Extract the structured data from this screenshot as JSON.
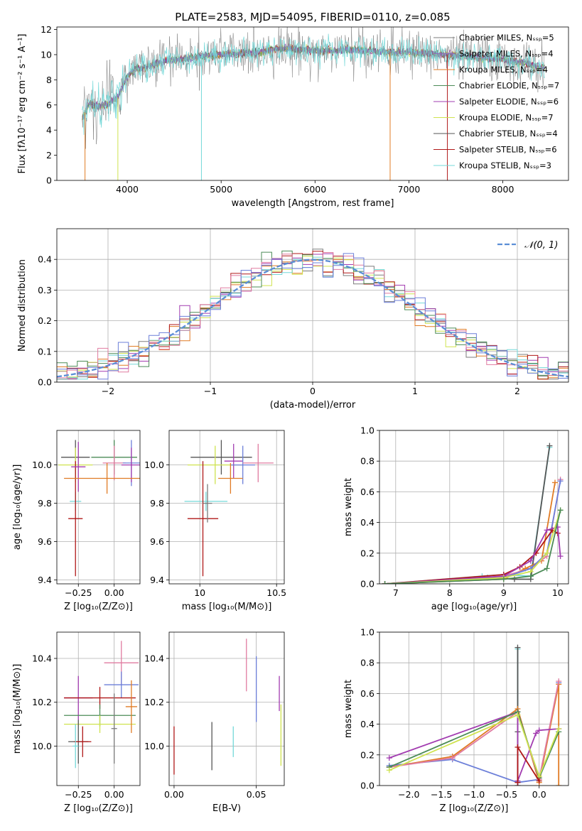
{
  "chart_data": [
    {
      "id": "spectrum",
      "type": "line",
      "title": "PLATE=2583, MJD=54095, FIBERID=0110, z=0.085",
      "xlabel": "wavelength [Angstrom, rest frame]",
      "ylabel": "Flux [fλ10⁻¹⁷ erg cm⁻² s⁻¹ A⁻¹]",
      "xlim": [
        3250,
        8700
      ],
      "ylim": [
        0,
        12.2
      ],
      "xticks": [
        4000,
        5000,
        6000,
        7000,
        8000
      ],
      "yticks": [
        0,
        2,
        4,
        6,
        8,
        10,
        12
      ],
      "grid": false,
      "legend_position": "top-right",
      "series": [
        {
          "name": "Chabrier MILES, Nₛₛₚ=5",
          "color": "#7b7b7b"
        },
        {
          "name": "Salpeter MILES, Nₛₛₚ=4",
          "color": "#8d6fb5"
        },
        {
          "name": "Kroupa MILES, Nₛₛₚ=4",
          "color": "#e07b24"
        },
        {
          "name": "Chabrier ELODIE, Nₛₛₚ=7",
          "color": "#4b8b57"
        },
        {
          "name": "Salpeter ELODIE, Nₛₛₚ=6",
          "color": "#a23cb0"
        },
        {
          "name": "Kroupa ELODIE, Nₛₛₚ=7",
          "color": "#cfe34f"
        },
        {
          "name": "Chabrier STELIB, Nₛₛₚ=4",
          "color": "#555555"
        },
        {
          "name": "Salpeter STELIB, Nₛₛₚ=6",
          "color": "#b01818"
        },
        {
          "name": "Kroupa STELIB, Nₛₛₚ=3",
          "color": "#74d8d8"
        }
      ],
      "profile_x": [
        3520,
        3600,
        3700,
        3800,
        3900,
        4000,
        4100,
        4200,
        4400,
        4600,
        4800,
        5000,
        5200,
        5400,
        5600,
        5800,
        6000,
        6200,
        6400,
        6600,
        6800,
        7000,
        7200,
        7400,
        7600,
        7800,
        8000,
        8200,
        8450
      ],
      "profile_y": [
        4.9,
        6.2,
        5.8,
        6.1,
        6.6,
        8.3,
        8.9,
        9.0,
        9.5,
        9.7,
        9.9,
        10.0,
        10.1,
        10.2,
        10.5,
        10.4,
        10.3,
        10.3,
        10.4,
        10.3,
        10.2,
        10.2,
        10.1,
        10.0,
        9.9,
        9.7,
        9.6,
        9.4,
        8.9
      ]
    },
    {
      "id": "residuals",
      "type": "histogram",
      "xlabel": "(data-model)/error",
      "ylabel": "Normed distribution",
      "xlim": [
        -2.5,
        2.5
      ],
      "ylim": [
        0,
        0.5
      ],
      "xticks": [
        -2,
        -1,
        0,
        1,
        2
      ],
      "yticks": [
        0.0,
        0.1,
        0.2,
        0.3,
        0.4
      ],
      "grid": true,
      "legend_position": "top-right",
      "legend": "𝒩(0, 1)",
      "reference_curve": {
        "type": "normal",
        "mean": 0,
        "sigma": 1,
        "color": "#5b8fd6"
      },
      "bin_width": 0.1,
      "series_colors": [
        "#7b7b7b",
        "#e07b24",
        "#a23cb0",
        "#cfe34f",
        "#b01818",
        "#74d8d8",
        "#4b8b57",
        "#e07ba0",
        "#6c7fd9"
      ]
    },
    {
      "id": "age-vs-Z",
      "type": "errorbar",
      "xlabel": "Z [log₁₀(Z/Z⊙)]",
      "ylabel": "age  [log₁₀(age/yr)]",
      "xlim": [
        -0.4,
        0.18
      ],
      "ylim": [
        9.38,
        10.18
      ],
      "xticks": [
        -0.25,
        0.0
      ],
      "xticklabels": [
        "−0.25",
        "0.00"
      ],
      "yticks": [
        9.4,
        9.6,
        9.8,
        10.0
      ],
      "grid": true,
      "points": [
        {
          "x": -0.27,
          "y": 10.04,
          "xerr": 0.1,
          "yerr": 0.09,
          "color": "#555555"
        },
        {
          "x": -0.27,
          "y": 10.0,
          "xerr": 0.12,
          "yerr": 0.09,
          "color": "#cfe34f"
        },
        {
          "x": -0.27,
          "y": 9.81,
          "xerr": 0.04,
          "yerr": 0.05,
          "color": "#74d8d8"
        },
        {
          "x": -0.27,
          "y": 9.72,
          "xerr": 0.05,
          "yerr": 0.3,
          "color": "#b01818"
        },
        {
          "x": -0.25,
          "y": 9.99,
          "xerr": 0.05,
          "yerr": 0.13,
          "color": "#a23cb0"
        },
        {
          "x": 0.0,
          "y": 10.04,
          "xerr": 0.16,
          "yerr": 0.09,
          "color": "#4b8b57"
        },
        {
          "x": 0.0,
          "y": 10.01,
          "xerr": 0.08,
          "yerr": 0.09,
          "color": "#e07ba0"
        },
        {
          "x": 0.12,
          "y": 10.01,
          "xerr": 0.06,
          "yerr": 0.12,
          "color": "#6c7fd9"
        },
        {
          "x": 0.12,
          "y": 10.0,
          "xerr": 0.07,
          "yerr": 0.09,
          "color": "#a23cb0"
        },
        {
          "x": -0.05,
          "y": 9.93,
          "xerr": 0.3,
          "yerr": 0.08,
          "color": "#e07b24"
        }
      ]
    },
    {
      "id": "age-vs-mass",
      "type": "errorbar",
      "xlabel": "mass [log₁₀(M/M⊙)]",
      "ylabel": "",
      "xlim": [
        9.8,
        10.55
      ],
      "ylim": [
        9.38,
        10.18
      ],
      "xticks": [
        10.0,
        10.5
      ],
      "yticks": [
        9.4,
        9.6,
        9.8,
        10.0
      ],
      "grid": true,
      "points": [
        {
          "x": 10.14,
          "y": 10.04,
          "xerr": 0.2,
          "yerr": 0.09,
          "color": "#555555"
        },
        {
          "x": 10.1,
          "y": 10.0,
          "xerr": 0.18,
          "yerr": 0.1,
          "color": "#cfe34f"
        },
        {
          "x": 10.04,
          "y": 9.81,
          "xerr": 0.14,
          "yerr": 0.05,
          "color": "#74d8d8"
        },
        {
          "x": 10.02,
          "y": 9.72,
          "xerr": 0.1,
          "yerr": 0.3,
          "color": "#b01818"
        },
        {
          "x": 10.22,
          "y": 10.02,
          "xerr": 0.06,
          "yerr": 0.09,
          "color": "#a23cb0"
        },
        {
          "x": 10.28,
          "y": 10.0,
          "xerr": 0.08,
          "yerr": 0.1,
          "color": "#6c7fd9"
        },
        {
          "x": 10.38,
          "y": 10.01,
          "xerr": 0.1,
          "yerr": 0.1,
          "color": "#e07ba0"
        },
        {
          "x": 10.2,
          "y": 9.93,
          "xerr": 0.08,
          "yerr": 0.08,
          "color": "#e07b24"
        },
        {
          "x": 10.05,
          "y": 9.8,
          "xerr": 0.03,
          "yerr": 0.1,
          "color": "#7b7b7b"
        }
      ]
    },
    {
      "id": "weight-vs-age",
      "type": "line",
      "xlabel": "age  [log₁₀(age/yr)]",
      "ylabel": "mass weight",
      "xlim": [
        6.7,
        10.2
      ],
      "ylim": [
        0,
        1
      ],
      "xticks": [
        7,
        8,
        9,
        10
      ],
      "yticks": [
        0.0,
        0.2,
        0.4,
        0.6,
        0.8,
        1.0
      ],
      "grid": true,
      "series": [
        {
          "color": "#74d8d8",
          "x": [
            6.8,
            8.6,
            9.0,
            9.5,
            9.85
          ],
          "y": [
            0.0,
            0.05,
            0.06,
            0.05,
            0.89
          ]
        },
        {
          "color": "#555555",
          "x": [
            6.8,
            8.7,
            9.2,
            9.5,
            9.85
          ],
          "y": [
            0.0,
            0.04,
            0.03,
            0.03,
            0.9
          ]
        },
        {
          "color": "#e07b24",
          "x": [
            6.8,
            9.0,
            9.4,
            9.7,
            9.95
          ],
          "y": [
            0.0,
            0.03,
            0.1,
            0.15,
            0.66
          ]
        },
        {
          "color": "#e07ba0",
          "x": [
            6.8,
            9.0,
            9.5,
            9.8,
            10.05
          ],
          "y": [
            0.0,
            0.05,
            0.1,
            0.18,
            0.68
          ]
        },
        {
          "color": "#6c7fd9",
          "x": [
            6.8,
            9.0,
            9.5,
            9.8,
            10.05
          ],
          "y": [
            0.0,
            0.04,
            0.1,
            0.2,
            0.67
          ]
        },
        {
          "color": "#b01818",
          "x": [
            6.8,
            9.0,
            9.3,
            9.6,
            9.9,
            10.0
          ],
          "y": [
            0.0,
            0.06,
            0.11,
            0.2,
            0.35,
            0.33
          ]
        },
        {
          "color": "#a23cb0",
          "x": [
            6.8,
            9.0,
            9.5,
            9.8,
            10.0,
            10.05
          ],
          "y": [
            0.0,
            0.05,
            0.15,
            0.35,
            0.37,
            0.18
          ]
        },
        {
          "color": "#cfe34f",
          "x": [
            6.8,
            9.0,
            9.5,
            9.8,
            10.05
          ],
          "y": [
            0.0,
            0.04,
            0.08,
            0.2,
            0.48
          ]
        },
        {
          "color": "#4b8b57",
          "x": [
            6.8,
            9.0,
            9.5,
            9.8,
            10.05
          ],
          "y": [
            0.0,
            0.03,
            0.05,
            0.1,
            0.48
          ]
        }
      ]
    },
    {
      "id": "mass-vs-Z",
      "type": "errorbar",
      "xlabel": "Z [log₁₀(Z/Z⊙)]",
      "ylabel": "mass [log₁₀(M/M⊙)]",
      "xlim": [
        -0.4,
        0.18
      ],
      "ylim": [
        9.82,
        10.52
      ],
      "xticks": [
        -0.25,
        0.0
      ],
      "xticklabels": [
        "−0.25",
        "0.00"
      ],
      "yticks": [
        10.0,
        10.2,
        10.4
      ],
      "grid": true,
      "points": [
        {
          "x": 0.05,
          "y": 10.38,
          "xerr": 0.12,
          "yerr": 0.1,
          "color": "#e07ba0"
        },
        {
          "x": 0.05,
          "y": 10.28,
          "xerr": 0.12,
          "yerr": 0.06,
          "color": "#6c7fd9"
        },
        {
          "x": -0.25,
          "y": 10.22,
          "xerr": 0.1,
          "yerr": 0.1,
          "color": "#a23cb0"
        },
        {
          "x": -0.1,
          "y": 10.22,
          "xerr": 0.25,
          "yerr": 0.05,
          "color": "#b01818"
        },
        {
          "x": -0.1,
          "y": 10.14,
          "xerr": 0.25,
          "yerr": 0.05,
          "color": "#4b8b57"
        },
        {
          "x": -0.1,
          "y": 10.1,
          "xerr": 0.25,
          "yerr": 0.04,
          "color": "#cfe34f"
        },
        {
          "x": 0.12,
          "y": 10.18,
          "xerr": 0.04,
          "yerr": 0.12,
          "color": "#e07b24"
        },
        {
          "x": -0.25,
          "y": 10.02,
          "xerr": 0.07,
          "yerr": 0.1,
          "color": "#555555"
        },
        {
          "x": -0.22,
          "y": 10.02,
          "xerr": 0.06,
          "yerr": 0.07,
          "color": "#b01818"
        },
        {
          "x": -0.27,
          "y": 10.0,
          "xerr": 0.02,
          "yerr": 0.1,
          "color": "#74d8d8"
        },
        {
          "x": 0.0,
          "y": 10.08,
          "xerr": 0.02,
          "yerr": 0.16,
          "color": "#7b7b7b"
        }
      ]
    },
    {
      "id": "mass-vs-ebv",
      "type": "errorbar",
      "xlabel": "E(B-V)",
      "ylabel": "",
      "xlim": [
        -0.003,
        0.067
      ],
      "ylim": [
        9.82,
        10.52
      ],
      "xticks": [
        0.0,
        0.05
      ],
      "xticklabels": [
        "0.00",
        "0.05"
      ],
      "yticks": [
        10.0,
        10.2,
        10.4
      ],
      "grid": true,
      "points": [
        {
          "x": 0.0,
          "y": 9.98,
          "xerr": 0,
          "yerr": 0.11,
          "color": "#b01818"
        },
        {
          "x": 0.023,
          "y": 10.0,
          "xerr": 0,
          "yerr": 0.11,
          "color": "#555555"
        },
        {
          "x": 0.036,
          "y": 10.02,
          "xerr": 0,
          "yerr": 0.07,
          "color": "#74d8d8"
        },
        {
          "x": 0.044,
          "y": 10.37,
          "xerr": 0,
          "yerr": 0.12,
          "color": "#e07ba0"
        },
        {
          "x": 0.05,
          "y": 10.26,
          "xerr": 0,
          "yerr": 0.15,
          "color": "#6c7fd9"
        },
        {
          "x": 0.064,
          "y": 10.24,
          "xerr": 0,
          "yerr": 0.08,
          "color": "#a23cb0"
        },
        {
          "x": 0.065,
          "y": 10.05,
          "xerr": 0,
          "yerr": 0.14,
          "color": "#cfe34f"
        }
      ]
    },
    {
      "id": "weight-vs-Z",
      "type": "line",
      "xlabel": "Z [log₁₀(Z/Z⊙)]",
      "ylabel": "mass weight",
      "xlim": [
        -2.45,
        0.45
      ],
      "ylim": [
        0,
        1
      ],
      "xticks": [
        -2.0,
        -1.5,
        -1.0,
        -0.5,
        0.0
      ],
      "xticklabels": [
        "−2.0",
        "−1.5",
        "−1.0",
        "−0.5",
        "0.0"
      ],
      "yticks": [
        0.0,
        0.2,
        0.4,
        0.6,
        0.8,
        1.0
      ],
      "grid": true,
      "series": [
        {
          "color": "#74d8d8",
          "x": [
            -0.33,
            -0.33,
            -0.33
          ],
          "y": [
            0.02,
            0.48,
            0.89
          ]
        },
        {
          "color": "#555555",
          "x": [
            -0.33,
            -0.33,
            -0.33
          ],
          "y": [
            0.0,
            0.35,
            0.9
          ]
        },
        {
          "color": "#6c7fd9",
          "x": [
            -2.3,
            -1.33,
            -0.33,
            0.0,
            0.3
          ],
          "y": [
            0.13,
            0.17,
            0.02,
            0.04,
            0.67
          ]
        },
        {
          "color": "#e07b24",
          "x": [
            -2.3,
            -1.33,
            -0.33,
            0.0,
            0.3,
            0.3
          ],
          "y": [
            0.12,
            0.19,
            0.5,
            0.02,
            0.66,
            0.0
          ]
        },
        {
          "color": "#e07ba0",
          "x": [
            -2.3,
            -1.33,
            -0.33,
            0.0,
            0.3
          ],
          "y": [
            0.12,
            0.18,
            0.48,
            0.04,
            0.68
          ]
        },
        {
          "color": "#a23cb0",
          "x": [
            -2.3,
            -0.33,
            -0.33,
            -0.05,
            0.0,
            0.3
          ],
          "y": [
            0.18,
            0.48,
            0.03,
            0.34,
            0.36,
            0.37
          ]
        },
        {
          "color": "#4b8b57",
          "x": [
            -2.3,
            -0.33,
            0.0,
            0.3
          ],
          "y": [
            0.12,
            0.48,
            0.05,
            0.35
          ]
        },
        {
          "color": "#cfe34f",
          "x": [
            -2.3,
            -0.33,
            0.0,
            0.3
          ],
          "y": [
            0.1,
            0.46,
            0.06,
            0.37
          ]
        },
        {
          "color": "#b01818",
          "x": [
            -0.33,
            -0.33,
            0.0
          ],
          "y": [
            0.02,
            0.25,
            0.03
          ]
        }
      ]
    }
  ]
}
